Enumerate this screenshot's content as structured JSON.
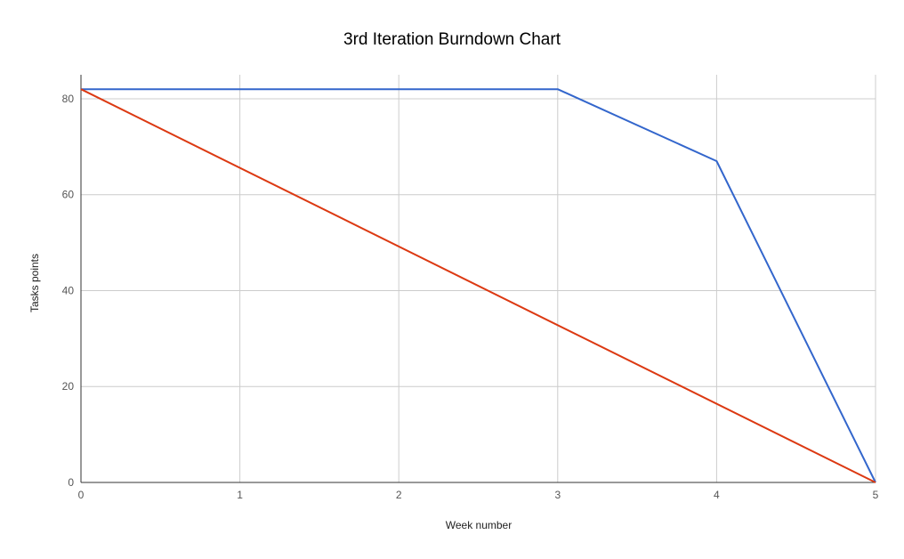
{
  "chart_data": {
    "type": "line",
    "title": "3rd Iteration Burndown Chart",
    "xlabel": "Week number",
    "ylabel": "Tasks points",
    "xlim": [
      0,
      5
    ],
    "ylim": [
      0,
      85
    ],
    "x_ticks": [
      0,
      1,
      2,
      3,
      4,
      5
    ],
    "y_ticks": [
      0,
      20,
      40,
      60,
      80
    ],
    "grid": true,
    "series": [
      {
        "color": "#3366cc",
        "x": [
          0,
          1,
          2,
          3,
          4,
          5
        ],
        "values": [
          82,
          82,
          82,
          82,
          67,
          0
        ]
      },
      {
        "color": "#dc3912",
        "x": [
          0,
          5
        ],
        "values": [
          82,
          0
        ]
      }
    ]
  }
}
